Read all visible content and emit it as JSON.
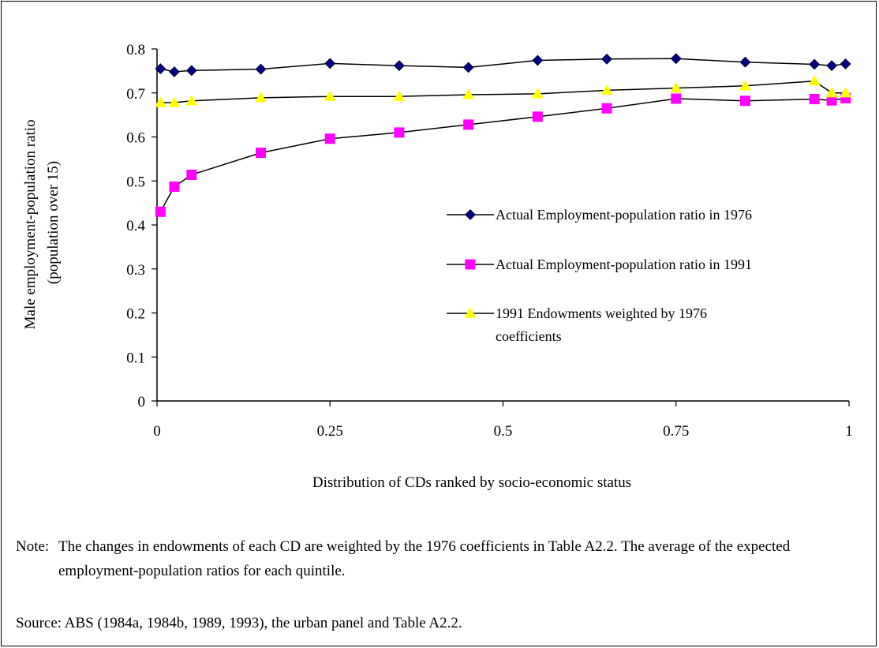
{
  "chart_data": {
    "type": "line",
    "xlabel": "Distribution of CDs ranked by socio-economic status",
    "ylabel_lines": [
      "Male employment-population ratio",
      "(population over 15)"
    ],
    "xlim": [
      0,
      1
    ],
    "ylim": [
      0,
      0.8
    ],
    "x_ticks": [
      0,
      0.25,
      0.5,
      0.75,
      1
    ],
    "x_tick_labels": [
      "0",
      "0.25",
      "0.5",
      "0.75",
      "1"
    ],
    "y_ticks": [
      0,
      0.1,
      0.2,
      0.3,
      0.4,
      0.5,
      0.6,
      0.7,
      0.8
    ],
    "y_tick_labels": [
      "0",
      "0.1",
      "0.2",
      "0.3",
      "0.4",
      "0.5",
      "0.6",
      "0.7",
      "0.8"
    ],
    "grid": false,
    "legend_position": "right",
    "x": [
      0.005,
      0.025,
      0.05,
      0.15,
      0.25,
      0.35,
      0.45,
      0.55,
      0.65,
      0.75,
      0.85,
      0.95,
      0.975,
      0.995
    ],
    "series": [
      {
        "name": "Actual Employment-population ratio in 1976",
        "marker": "diamond",
        "color": "#000080",
        "values": [
          0.755,
          0.748,
          0.751,
          0.754,
          0.767,
          0.762,
          0.758,
          0.774,
          0.777,
          0.778,
          0.77,
          0.765,
          0.762,
          0.766
        ]
      },
      {
        "name": "Actual Employment-population ratio in 1991",
        "marker": "square",
        "color": "#FF00FF",
        "values": [
          0.43,
          0.487,
          0.514,
          0.564,
          0.596,
          0.61,
          0.628,
          0.646,
          0.665,
          0.687,
          0.682,
          0.686,
          0.683,
          0.688
        ]
      },
      {
        "name": "1991 Endowments weighted by 1976 coefficients",
        "legend_lines": [
          "1991 Endowments weighted by 1976",
          "coefficients"
        ],
        "marker": "triangle",
        "color": "#FFFF00",
        "values": [
          0.678,
          0.678,
          0.682,
          0.689,
          0.692,
          0.692,
          0.696,
          0.698,
          0.706,
          0.711,
          0.716,
          0.727,
          0.7,
          0.7
        ]
      }
    ]
  },
  "notes": {
    "note_label": "Note:",
    "note_text": "The changes in endowments of each CD are weighted by the 1976 coefficients in Table A2.2. The average of the expected employment-population ratios for each quintile.",
    "source_text": "Source:  ABS (1984a, 1984b, 1989, 1993), the urban panel and Table A2.2."
  }
}
